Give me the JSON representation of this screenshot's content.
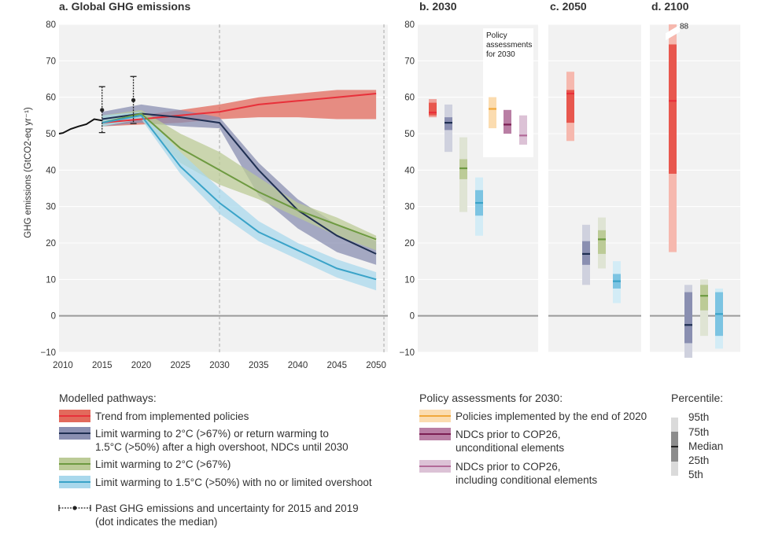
{
  "chart_data": [
    {
      "panel": "a",
      "type": "line",
      "title": "a. Global GHG emissions",
      "ylabel": "GHG emissions (GtCO2-eq yr⁻¹)",
      "xlabel": "",
      "xlim": [
        2009.5,
        2051.5
      ],
      "ylim": [
        -10,
        80
      ],
      "x_ticks": [
        "2010",
        "2015",
        "2020",
        "2025",
        "2030",
        "2035",
        "2040",
        "2045",
        "2050"
      ],
      "y_ticks": [
        "80",
        "70",
        "60",
        "50",
        "40",
        "30",
        "20",
        "10",
        "0",
        "−10"
      ],
      "series": [
        {
          "key": "trend",
          "color": "#e8303a",
          "band_color": "#e26a5c",
          "median": [
            [
              2015,
              53
            ],
            [
              2020,
              54
            ],
            [
              2025,
              55
            ],
            [
              2030,
              56
            ],
            [
              2035,
              58
            ],
            [
              2040,
              59
            ],
            [
              2045,
              60
            ],
            [
              2050,
              61
            ]
          ],
          "lower": [
            [
              2015,
              52
            ],
            [
              2020,
              52.5
            ],
            [
              2025,
              53
            ],
            [
              2030,
              54
            ],
            [
              2035,
              54.5
            ],
            [
              2040,
              54.5
            ],
            [
              2045,
              54
            ],
            [
              2050,
              54
            ]
          ],
          "upper": [
            [
              2015,
              54
            ],
            [
              2020,
              55
            ],
            [
              2025,
              56.5
            ],
            [
              2030,
              58
            ],
            [
              2035,
              60
            ],
            [
              2040,
              61
            ],
            [
              2045,
              62
            ],
            [
              2050,
              62
            ]
          ]
        },
        {
          "key": "ndc_2c",
          "color": "#1f2f52",
          "band_color": "#8a8fb1",
          "median": [
            [
              2015,
              54
            ],
            [
              2020,
              55.5
            ],
            [
              2025,
              54.5
            ],
            [
              2030,
              53
            ],
            [
              2035,
              40
            ],
            [
              2040,
              29
            ],
            [
              2045,
              22
            ],
            [
              2050,
              17
            ]
          ],
          "lower": [
            [
              2015,
              52
            ],
            [
              2020,
              53
            ],
            [
              2025,
              52
            ],
            [
              2030,
              51.5
            ],
            [
              2035,
              33
            ],
            [
              2040,
              24
            ],
            [
              2045,
              17.5
            ],
            [
              2050,
              14
            ]
          ],
          "upper": [
            [
              2015,
              56
            ],
            [
              2020,
              58
            ],
            [
              2025,
              56.5
            ],
            [
              2030,
              54.5
            ],
            [
              2035,
              42
            ],
            [
              2040,
              32
            ],
            [
              2045,
              25
            ],
            [
              2050,
              20.5
            ]
          ]
        },
        {
          "key": "2c",
          "color": "#6e9a41",
          "band_color": "#bccb97",
          "median": [
            [
              2015,
              53
            ],
            [
              2020,
              55.5
            ],
            [
              2025,
              46
            ],
            [
              2030,
              40
            ],
            [
              2035,
              34
            ],
            [
              2040,
              29
            ],
            [
              2045,
              25
            ],
            [
              2050,
              21
            ]
          ],
          "lower": [
            [
              2015,
              52
            ],
            [
              2020,
              54
            ],
            [
              2025,
              42
            ],
            [
              2030,
              36
            ],
            [
              2035,
              32
            ],
            [
              2040,
              27
            ],
            [
              2045,
              22
            ],
            [
              2050,
              18
            ]
          ],
          "upper": [
            [
              2015,
              55
            ],
            [
              2020,
              56.5
            ],
            [
              2025,
              50
            ],
            [
              2030,
              45
            ],
            [
              2035,
              38
            ],
            [
              2040,
              31
            ],
            [
              2045,
              27
            ],
            [
              2050,
              22
            ]
          ]
        },
        {
          "key": "1p5",
          "color": "#3aa3c8",
          "band_color": "#a9d8ec",
          "median": [
            [
              2015,
              53
            ],
            [
              2020,
              55
            ],
            [
              2025,
              41
            ],
            [
              2030,
              31
            ],
            [
              2035,
              23
            ],
            [
              2040,
              18
            ],
            [
              2045,
              13
            ],
            [
              2050,
              10
            ]
          ],
          "lower": [
            [
              2015,
              52
            ],
            [
              2020,
              54
            ],
            [
              2025,
              39
            ],
            [
              2030,
              28
            ],
            [
              2035,
              20.5
            ],
            [
              2040,
              15.5
            ],
            [
              2045,
              10.5
            ],
            [
              2050,
              7
            ]
          ],
          "upper": [
            [
              2015,
              55
            ],
            [
              2020,
              56
            ],
            [
              2025,
              45
            ],
            [
              2030,
              35
            ],
            [
              2035,
              26
            ],
            [
              2040,
              20
            ],
            [
              2045,
              15.5
            ],
            [
              2050,
              12
            ]
          ]
        }
      ],
      "past": {
        "history": [
          [
            2009.5,
            50
          ],
          [
            2010,
            50.2
          ],
          [
            2011,
            51.3
          ],
          [
            2012,
            52
          ],
          [
            2013,
            52.6
          ],
          [
            2014,
            54
          ],
          [
            2015,
            53.6
          ]
        ],
        "uncertainty": [
          {
            "year": 2015,
            "median": 56.5,
            "low": 50.3,
            "high": 62.9
          },
          {
            "year": 2019,
            "median": 59.2,
            "low": 52.8,
            "high": 65.7
          }
        ]
      },
      "dashed_vlines": [
        2030,
        2051
      ]
    },
    {
      "panel": "b",
      "type": "box",
      "title": "b. 2030",
      "ylim": [
        -10,
        80
      ],
      "y_ticks": [
        "80",
        "70",
        "60",
        "50",
        "40",
        "30",
        "20",
        "10",
        "0",
        "−10"
      ],
      "inset_label": [
        "Policy",
        "assessments",
        "for 2030"
      ],
      "boxes": [
        {
          "key": "trend",
          "p5": 54.5,
          "p25": 55,
          "median": 55.8,
          "p75": 58.5,
          "p95": 59.5,
          "color": "#e8303a",
          "light": "#f0a39d",
          "mid": "#e8574e"
        },
        {
          "key": "ndc_2c",
          "p5": 45,
          "p25": 51,
          "median": 53,
          "p75": 54.5,
          "p95": 58,
          "color": "#1f2f52",
          "light": "#cfd1de",
          "mid": "#8a8fb1"
        },
        {
          "key": "2c",
          "p5": 28.5,
          "p25": 37.5,
          "median": 40.5,
          "p75": 43,
          "p95": 49,
          "color": "#6e9a41",
          "light": "#dfe4d4",
          "mid": "#bccb97"
        },
        {
          "key": "1p5",
          "p5": 22,
          "p25": 27.5,
          "median": 31,
          "p75": 34.5,
          "p95": 38,
          "color": "#3aa3c8",
          "light": "#d3ecf6",
          "mid": "#7cc4e2"
        },
        {
          "key": "pol2020",
          "p5": 51.5,
          "p25": 51.5,
          "median": 56.8,
          "p75": 60,
          "p95": 60,
          "color": "#f1a83b",
          "light": "#fbdcb0",
          "mid": "#fbdcb0"
        },
        {
          "key": "ndc_uncond",
          "p5": 50,
          "p25": 50,
          "median": 52.5,
          "p75": 56.5,
          "p95": 56.5,
          "color": "#7b1f53",
          "light": "#b97ea4",
          "mid": "#b97ea4"
        },
        {
          "key": "ndc_cond",
          "p5": 47,
          "p25": 47,
          "median": 49.5,
          "p75": 55,
          "p95": 55,
          "color": "#b26a98",
          "light": "#dcc2d6",
          "mid": "#dcc2d6"
        }
      ]
    },
    {
      "panel": "c",
      "type": "box",
      "title": "c. 2050",
      "ylim": [
        -10,
        80
      ],
      "boxes": [
        {
          "key": "trend",
          "p5": 48,
          "p25": 53,
          "median": 61,
          "p75": 62,
          "p95": 67,
          "color": "#e8303a",
          "light": "#f6b8ae",
          "mid": "#e8574e"
        },
        {
          "key": "ndc_2c",
          "p5": 8.5,
          "p25": 14,
          "median": 17,
          "p75": 20.5,
          "p95": 25,
          "color": "#1f2f52",
          "light": "#cfd1de",
          "mid": "#8a8fb1"
        },
        {
          "key": "2c",
          "p5": 13,
          "p25": 17,
          "median": 21,
          "p75": 23.5,
          "p95": 27,
          "color": "#6e9a41",
          "light": "#dfe4d4",
          "mid": "#bccb97"
        },
        {
          "key": "1p5",
          "p5": 3.5,
          "p25": 7.5,
          "median": 9.5,
          "p75": 11.5,
          "p95": 15,
          "color": "#3aa3c8",
          "light": "#d3ecf6",
          "mid": "#7cc4e2"
        }
      ]
    },
    {
      "panel": "d",
      "type": "box",
      "title": "d. 2100",
      "ylim": [
        -10,
        80
      ],
      "break_label": "88",
      "boxes": [
        {
          "key": "trend",
          "p5": 17.5,
          "p25": 39,
          "median": 59,
          "p75": 74.5,
          "p95": 88,
          "color": "#e8303a",
          "light": "#f6b8ae",
          "mid": "#e8574e"
        },
        {
          "key": "ndc_2c",
          "p5": -11.5,
          "p25": -7.5,
          "median": -2.5,
          "p75": 6.5,
          "p95": 8.5,
          "color": "#1f2f52",
          "light": "#cfd1de",
          "mid": "#8a8fb1"
        },
        {
          "key": "2c",
          "p5": -5.5,
          "p25": 1.5,
          "median": 5.5,
          "p75": 8.5,
          "p95": 10,
          "color": "#6e9a41",
          "light": "#dfe4d4",
          "mid": "#bccb97"
        },
        {
          "key": "1p5",
          "p5": -9,
          "p25": -5.5,
          "median": 0.5,
          "p75": 6.5,
          "p95": 7.5,
          "color": "#3aa3c8",
          "light": "#d3ecf6",
          "mid": "#7cc4e2"
        }
      ]
    }
  ],
  "legend": {
    "pathways_title": "Modelled pathways:",
    "pathways": [
      {
        "key": "trend",
        "lines": [
          "Trend from implemented policies"
        ]
      },
      {
        "key": "ndc_2c",
        "lines": [
          "Limit warming to 2°C (>67%) or return warming to",
          "1.5°C (>50%) after a high overshoot, NDCs until 2030"
        ]
      },
      {
        "key": "2c",
        "lines": [
          "Limit warming to 2°C (>67%)"
        ]
      },
      {
        "key": "1p5",
        "lines": [
          "Limit warming to 1.5°C (>50%) with no or limited overshoot"
        ]
      },
      {
        "key": "past",
        "lines": [
          "Past GHG emissions and uncertainty for 2015 and 2019",
          "(dot indicates the median)"
        ]
      }
    ],
    "policy_title": "Policy assessments for 2030:",
    "policy": [
      {
        "key": "pol2020",
        "lines": [
          "Policies implemented by the end of 2020"
        ]
      },
      {
        "key": "ndc_uncond",
        "lines": [
          "NDCs prior to COP26,",
          "unconditional elements"
        ]
      },
      {
        "key": "ndc_cond",
        "lines": [
          "NDCs prior to COP26,",
          "including conditional elements"
        ]
      }
    ],
    "percentile_title": "Percentile:",
    "percentiles": [
      "95th",
      "75th",
      "Median",
      "25th",
      "5th"
    ]
  },
  "colors": {
    "panel_bg": "#f2f2f2",
    "grid": "#ffffff",
    "zero_line": "#9a9a9a",
    "text": "#333333"
  }
}
